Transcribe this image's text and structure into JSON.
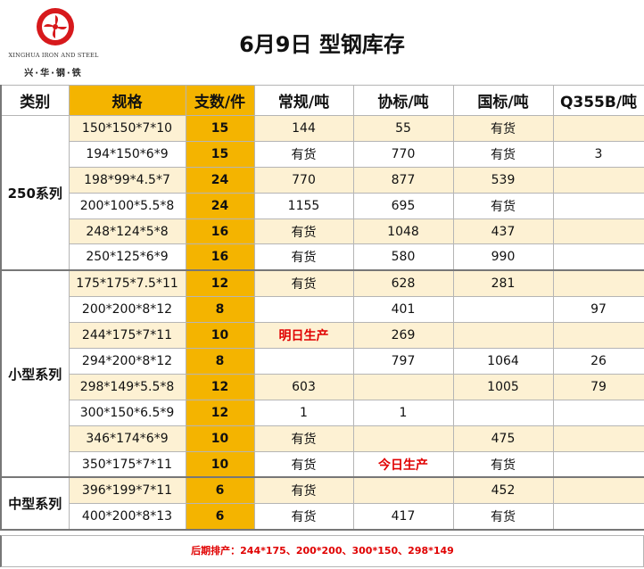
{
  "logo": {
    "english": "XINGHUA IRON AND STEEL",
    "chinese": "兴·华·钢·铁",
    "icon": "xinghua-logo-icon"
  },
  "title": "6月9日  型钢库存",
  "headers": [
    "类别",
    "规格",
    "支数/件",
    "常规/吨",
    "协标/吨",
    "国标/吨",
    "Q355B/吨"
  ],
  "groups": [
    {
      "name": "250系列",
      "rows": [
        {
          "spec": "150*150*7*10",
          "pcs": "15",
          "regular": "144",
          "assoc": "55",
          "national": "有货",
          "q355b": ""
        },
        {
          "spec": "194*150*6*9",
          "pcs": "15",
          "regular": "有货",
          "assoc": "770",
          "national": "有货",
          "q355b": "3"
        },
        {
          "spec": "198*99*4.5*7",
          "pcs": "24",
          "regular": "770",
          "assoc": "877",
          "national": "539",
          "q355b": ""
        },
        {
          "spec": "200*100*5.5*8",
          "pcs": "24",
          "regular": "1155",
          "assoc": "695",
          "national": "有货",
          "q355b": ""
        },
        {
          "spec": "248*124*5*8",
          "pcs": "16",
          "regular": "有货",
          "assoc": "1048",
          "national": "437",
          "q355b": ""
        },
        {
          "spec": "250*125*6*9",
          "pcs": "16",
          "regular": "有货",
          "assoc": "580",
          "national": "990",
          "q355b": ""
        }
      ]
    },
    {
      "name": "小型系列",
      "rows": [
        {
          "spec": "175*175*7.5*11",
          "pcs": "12",
          "regular": "有货",
          "assoc": "628",
          "national": "281",
          "q355b": ""
        },
        {
          "spec": "200*200*8*12",
          "pcs": "8",
          "regular": "",
          "assoc": "401",
          "national": "",
          "q355b": "97"
        },
        {
          "spec": "244*175*7*11",
          "pcs": "10",
          "regular": "明日生产",
          "assoc": "269",
          "national": "",
          "q355b": ""
        },
        {
          "spec": "294*200*8*12",
          "pcs": "8",
          "regular": "",
          "assoc": "797",
          "national": "1064",
          "q355b": "26"
        },
        {
          "spec": "298*149*5.5*8",
          "pcs": "12",
          "regular": "603",
          "assoc": "",
          "national": "1005",
          "q355b": "79"
        },
        {
          "spec": "300*150*6.5*9",
          "pcs": "12",
          "regular": "1",
          "assoc": "1",
          "national": "",
          "q355b": ""
        },
        {
          "spec": "346*174*6*9",
          "pcs": "10",
          "regular": "有货",
          "assoc": "",
          "national": "475",
          "q355b": ""
        },
        {
          "spec": "350*175*7*11",
          "pcs": "10",
          "regular": "有货",
          "assoc": "今日生产",
          "national": "有货",
          "q355b": ""
        }
      ]
    },
    {
      "name": "中型系列",
      "rows": [
        {
          "spec": "396*199*7*11",
          "pcs": "6",
          "regular": "有货",
          "assoc": "",
          "national": "452",
          "q355b": ""
        },
        {
          "spec": "400*200*8*13",
          "pcs": "6",
          "regular": "有货",
          "assoc": "417",
          "national": "有货",
          "q355b": ""
        }
      ]
    }
  ],
  "highlight_text": [
    "明日生产",
    "今日生产"
  ],
  "footer": "后期排产：244*175、200*200、300*150、298*149",
  "colors": {
    "header_gold": "#f4b400",
    "row_shade": "#fdf1d3",
    "alert_red": "#e00000",
    "logo_red": "#d7191c"
  }
}
